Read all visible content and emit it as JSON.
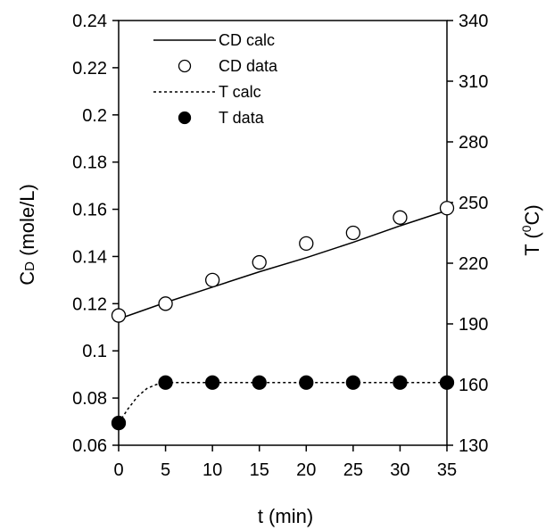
{
  "chart_data": {
    "type": "line",
    "xlabel": "t (min)",
    "ylabel_main": "C",
    "ylabel_sub": "D",
    "ylabel_unit": " (mole/L)",
    "y2label_main": "T (",
    "y2label_sup": "0",
    "y2label_tail": "C)",
    "xlim": [
      0,
      35
    ],
    "ylim": [
      0.06,
      0.24
    ],
    "y2lim": [
      130,
      340
    ],
    "x_ticks": [
      0,
      5,
      10,
      15,
      20,
      25,
      30,
      35
    ],
    "y_ticks": [
      0.06,
      0.08,
      0.1,
      0.12,
      0.14,
      0.16,
      0.18,
      0.2,
      0.22,
      0.24
    ],
    "y2_ticks": [
      130,
      160,
      190,
      220,
      250,
      280,
      310,
      340
    ],
    "x_tick_labels": [
      "0",
      "5",
      "10",
      "15",
      "20",
      "25",
      "30",
      "35"
    ],
    "y_tick_labels": [
      "0.06",
      "0.08",
      "0.1",
      "0.12",
      "0.14",
      "0.16",
      "0.18",
      "0.2",
      "0.22",
      "0.24"
    ],
    "y2_tick_labels": [
      "130",
      "160",
      "190",
      "220",
      "250",
      "280",
      "310",
      "340"
    ],
    "legend_position": "top-left",
    "series": [
      {
        "name": "CD calc",
        "axis": "left",
        "style": "solid-line",
        "x": [
          0,
          5,
          10,
          15,
          20,
          25,
          30,
          35
        ],
        "y": [
          0.1135,
          0.1205,
          0.127,
          0.1335,
          0.1395,
          0.146,
          0.153,
          0.1595
        ]
      },
      {
        "name": "CD data",
        "axis": "left",
        "style": "open-circle",
        "x": [
          0,
          5,
          10,
          15,
          20,
          25,
          30,
          35
        ],
        "y": [
          0.115,
          0.12,
          0.13,
          0.1375,
          0.1455,
          0.15,
          0.1565,
          0.1605
        ]
      },
      {
        "name": "T calc",
        "axis": "right",
        "style": "dotted-line",
        "x": [
          0,
          1,
          2,
          3,
          4,
          5,
          10,
          15,
          20,
          25,
          30,
          35
        ],
        "y": [
          141,
          148,
          154,
          158,
          160,
          161,
          161,
          161,
          161,
          161,
          161,
          161
        ]
      },
      {
        "name": "T data",
        "axis": "right",
        "style": "filled-circle",
        "x": [
          0,
          5,
          10,
          15,
          20,
          25,
          30,
          35
        ],
        "y": [
          141,
          161,
          161,
          161,
          161,
          161,
          161,
          161
        ]
      }
    ]
  }
}
